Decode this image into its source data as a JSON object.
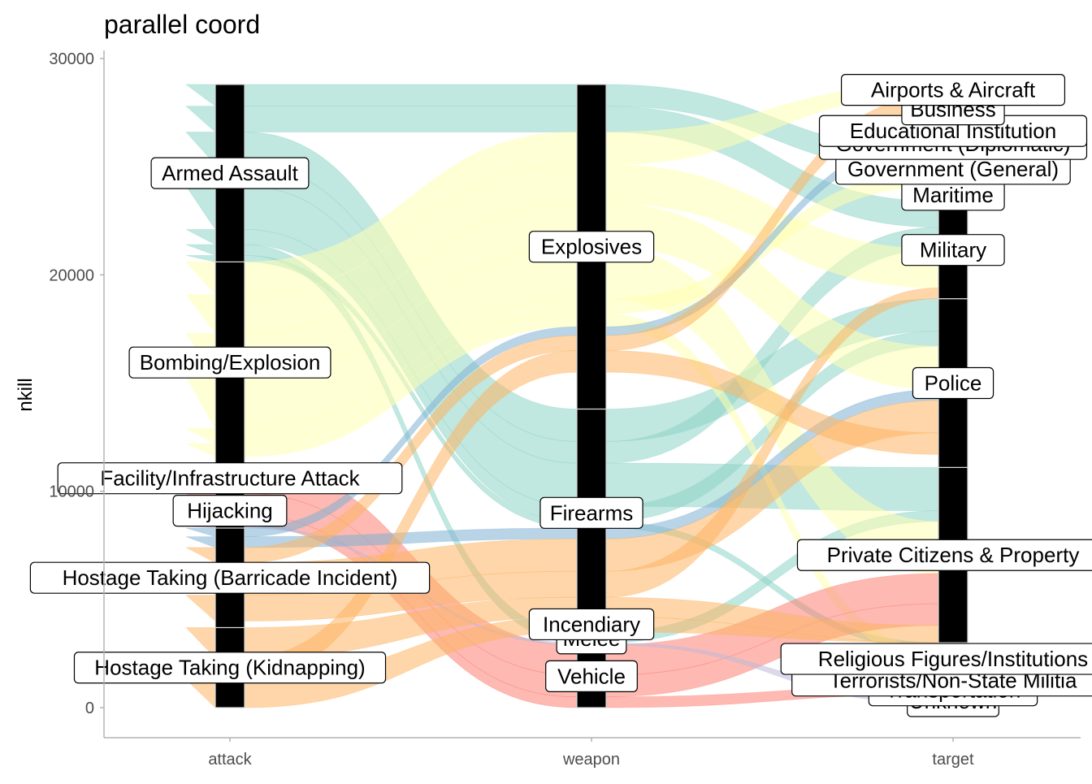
{
  "chart_data": {
    "type": "parallel-sets",
    "title": "parallel coord",
    "ylabel": "nkill",
    "ylim": [
      0,
      30000
    ],
    "yticks": [
      0,
      10000,
      20000,
      30000
    ],
    "ytick_labels": [
      "0",
      "10000",
      "20000",
      "30000"
    ],
    "axes": [
      "attack",
      "weapon",
      "target"
    ],
    "grid": false,
    "legend": "none",
    "stratum_fill": "#000000",
    "flow_colors": {
      "teal": "#8DD3C7",
      "yellow": "#FFFFB3",
      "lavender": "#BEBADA",
      "red": "#FB8072",
      "blue": "#80B1D3",
      "orange": "#FDB462"
    },
    "strata": {
      "attack": [
        {
          "label": "Hostage Taking (Kidnapping)",
          "low": 0,
          "high": 3700
        },
        {
          "label": "Hostage Taking (Barricade Incident)",
          "low": 3700,
          "high": 8300
        },
        {
          "label": "Hijacking",
          "low": 8300,
          "high": 9900
        },
        {
          "label": "Facility/Infrastructure Attack",
          "low": 9900,
          "high": 11300
        },
        {
          "label": "Bombing/Explosion",
          "low": 11300,
          "high": 20600
        },
        {
          "label": "Armed Assault",
          "low": 20600,
          "high": 28800
        }
      ],
      "weapon": [
        {
          "label": "Vehicle",
          "low": 0,
          "high": 2900
        },
        {
          "label": "Melee",
          "low": 2900,
          "high": 3500
        },
        {
          "label": "Incendiary",
          "low": 3500,
          "high": 4200
        },
        {
          "label": "Firearms",
          "low": 4200,
          "high": 13800
        },
        {
          "label": "Explosives",
          "low": 13800,
          "high": 28800
        }
      ],
      "target": [
        {
          "label": "Unknown",
          "low": 0,
          "high": 600
        },
        {
          "label": "Transportation",
          "low": 600,
          "high": 1000
        },
        {
          "label": "Terrorists/Non-State Militia",
          "low": 1000,
          "high": 1500
        },
        {
          "label": "Religious Figures/Institutions",
          "low": 1500,
          "high": 3000
        },
        {
          "label": "Private Citizens & Property",
          "low": 3000,
          "high": 11100
        },
        {
          "label": "Police",
          "low": 11100,
          "high": 18900
        },
        {
          "label": "Military",
          "low": 18900,
          "high": 23400
        },
        {
          "label": "Maritime",
          "low": 23400,
          "high": 24000
        },
        {
          "label": "Government (General)",
          "low": 24000,
          "high": 25800
        },
        {
          "label": "Government (Diplomatic)",
          "low": 25800,
          "high": 26300
        },
        {
          "label": "Educational Institution",
          "low": 26300,
          "high": 27000
        },
        {
          "label": "Business",
          "low": 27000,
          "high": 28300
        },
        {
          "label": "Airports & Aircraft",
          "low": 28300,
          "high": 28800
        }
      ]
    },
    "flows": [
      {
        "color": "teal",
        "n": 1000,
        "attack": "Armed Assault",
        "weapon": "Explosives",
        "target": "Government (General)"
      },
      {
        "color": "teal",
        "n": 1200,
        "attack": "Armed Assault",
        "weapon": "Explosives",
        "target": "Military"
      },
      {
        "color": "teal",
        "n": 1500,
        "attack": "Armed Assault",
        "weapon": "Firearms",
        "target": "Police"
      },
      {
        "color": "teal",
        "n": 1000,
        "attack": "Armed Assault",
        "weapon": "Firearms",
        "target": "Military"
      },
      {
        "color": "teal",
        "n": 2000,
        "attack": "Armed Assault",
        "weapon": "Firearms",
        "target": "Private Citizens & Property"
      },
      {
        "color": "teal",
        "n": 700,
        "attack": "Armed Assault",
        "weapon": "Firearms",
        "target": "Police"
      },
      {
        "color": "teal",
        "n": 500,
        "attack": "Armed Assault",
        "weapon": "Melee",
        "target": "Private Citizens & Property"
      },
      {
        "color": "teal",
        "n": 300,
        "attack": "Armed Assault",
        "weapon": "Firearms",
        "target": "Religious Figures/Institutions"
      },
      {
        "color": "yellow",
        "n": 1500,
        "attack": "Bombing/Explosion",
        "weapon": "Explosives",
        "target": "Airports & Aircraft"
      },
      {
        "color": "yellow",
        "n": 1800,
        "attack": "Bombing/Explosion",
        "weapon": "Explosives",
        "target": "Military"
      },
      {
        "color": "yellow",
        "n": 2000,
        "attack": "Bombing/Explosion",
        "weapon": "Explosives",
        "target": "Police"
      },
      {
        "color": "yellow",
        "n": 2400,
        "attack": "Bombing/Explosion",
        "weapon": "Explosives",
        "target": "Private Citizens & Property"
      },
      {
        "color": "yellow",
        "n": 700,
        "attack": "Bombing/Explosion",
        "weapon": "Explosives",
        "target": "Government (General)"
      },
      {
        "color": "yellow",
        "n": 600,
        "attack": "Bombing/Explosion",
        "weapon": "Explosives",
        "target": "Religious Figures/Institutions"
      },
      {
        "color": "red",
        "n": 1400,
        "attack": "Facility/Infrastructure Attack",
        "weapon": "Vehicle",
        "target": "Private Citizens & Property"
      },
      {
        "color": "red",
        "n": 1000,
        "attack": "Hijacking",
        "weapon": "Vehicle",
        "target": "Private Citizens & Property"
      },
      {
        "color": "red",
        "n": 500,
        "attack": "Hijacking",
        "weapon": "Vehicle",
        "target": "Transportation"
      },
      {
        "color": "lavender",
        "n": 400,
        "attack": "Hijacking",
        "weapon": "Melee",
        "target": "Unknown"
      },
      {
        "color": "blue",
        "n": 400,
        "attack": "Hostage Taking (Barricade Incident)",
        "weapon": "Explosives",
        "target": "Government (Diplomatic)"
      },
      {
        "color": "blue",
        "n": 500,
        "attack": "Hostage Taking (Barricade Incident)",
        "weapon": "Firearms",
        "target": "Police"
      },
      {
        "color": "orange",
        "n": 700,
        "attack": "Hostage Taking (Barricade Incident)",
        "weapon": "Explosives",
        "target": "Business"
      },
      {
        "color": "orange",
        "n": 1500,
        "attack": "Hostage Taking (Barricade Incident)",
        "weapon": "Firearms",
        "target": "Police"
      },
      {
        "color": "orange",
        "n": 1200,
        "attack": "Hostage Taking (Barricade Incident)",
        "weapon": "Firearms",
        "target": "Military"
      },
      {
        "color": "orange",
        "n": 1400,
        "attack": "Hostage Taking (Kidnapping)",
        "weapon": "Firearms",
        "target": "Private Citizens & Property"
      },
      {
        "color": "orange",
        "n": 1000,
        "attack": "Hostage Taking (Kidnapping)",
        "weapon": "Explosives",
        "target": "Police"
      },
      {
        "color": "orange",
        "n": 1300,
        "attack": "Hostage Taking (Kidnapping)",
        "weapon": "Incendiary",
        "target": "Private Citizens & Property"
      }
    ]
  }
}
